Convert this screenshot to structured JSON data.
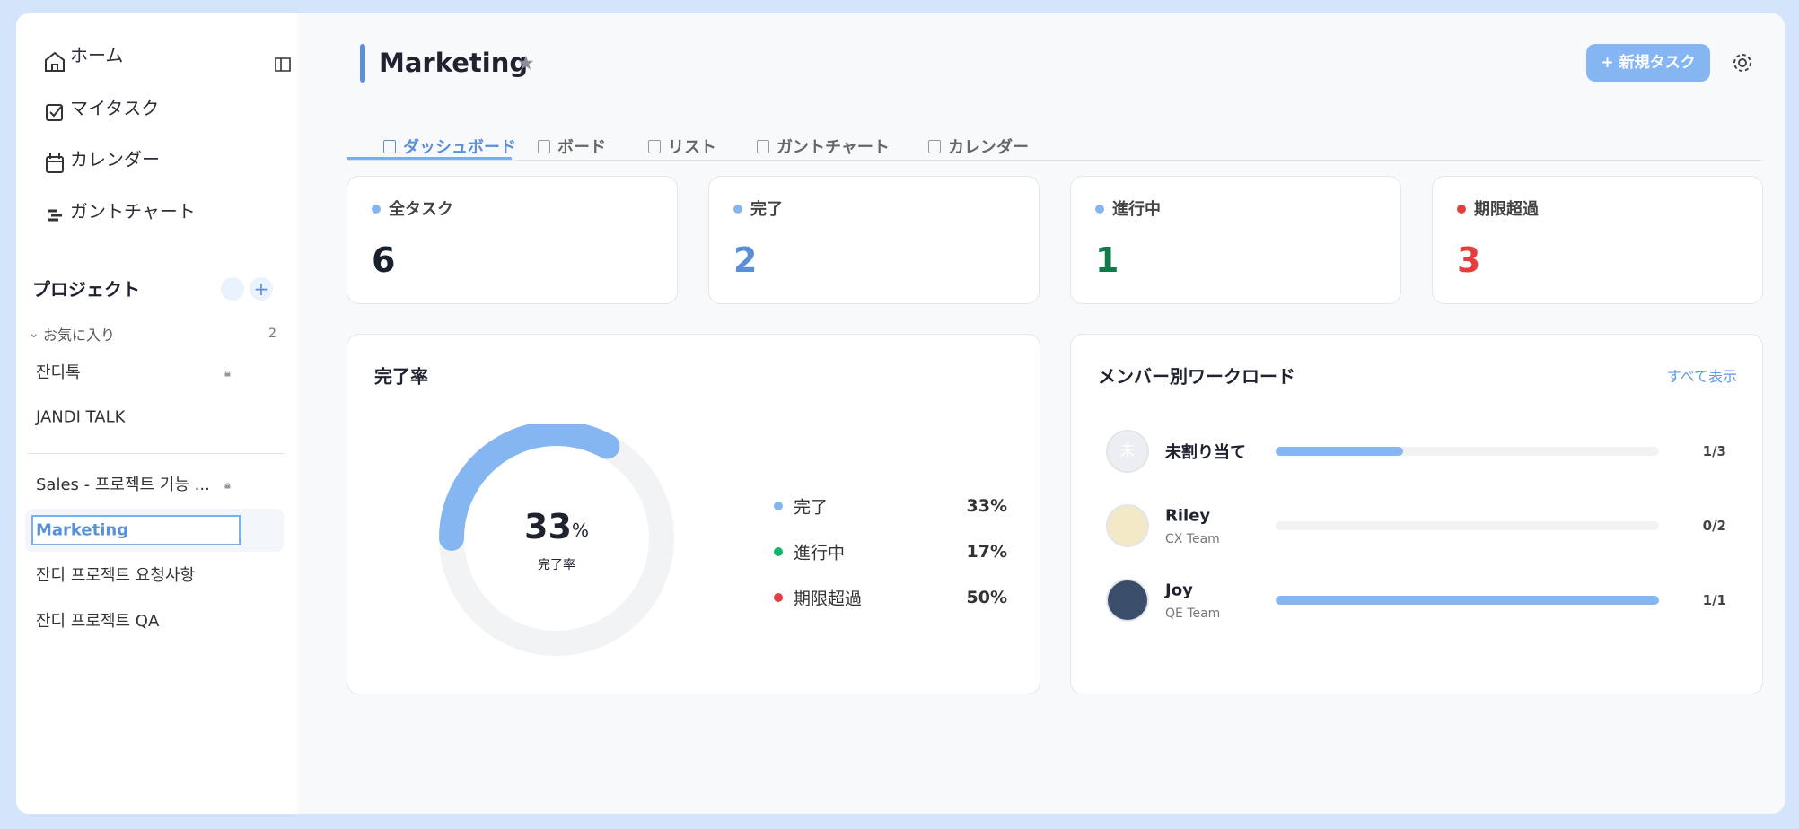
{
  "sidebar": {
    "nav": [
      "ホーム",
      "マイタスク",
      "カレンダー",
      "ガントチャート"
    ],
    "projects_title": "プロジェクト",
    "favorites": {
      "label": "お気に入り",
      "count": 2
    },
    "projects": [
      "잔디톡",
      "JANDI TALK",
      "Sales - 프로젝트 기능 ...",
      "Marketing",
      "잔디 프로젝트 요청사항",
      "잔디 프로젝트 QA"
    ]
  },
  "header": {
    "title": "Marketing",
    "new_task_button": "新規タスク"
  },
  "tabs": [
    "ダッシュボード",
    "ボード",
    "リスト",
    "ガントチャート",
    "カレンダー"
  ],
  "stats": [
    {
      "label": "全タスク",
      "value": 6
    },
    {
      "label": "完了",
      "value": 2
    },
    {
      "label": "進行中",
      "value": 1
    },
    {
      "label": "期限超過",
      "value": 3
    }
  ],
  "completion": {
    "title": "完了率",
    "rate": 33,
    "unit": "%",
    "caption": "完了率",
    "legend": [
      {
        "label": "完了",
        "percent": "33%"
      },
      {
        "label": "進行中",
        "percent": "17%"
      },
      {
        "label": "期限超過",
        "percent": "50%"
      }
    ]
  },
  "workload": {
    "title": "メンバー別ワークロード",
    "show_all": "すべて表示",
    "members": [
      {
        "avatar": "未",
        "name": "未割り当て",
        "count": "1/3"
      },
      {
        "name": "Riley",
        "team": "CX Team",
        "count": "0/2"
      },
      {
        "name": "Joy",
        "team": "QE Team",
        "count": "1/1"
      }
    ]
  }
}
